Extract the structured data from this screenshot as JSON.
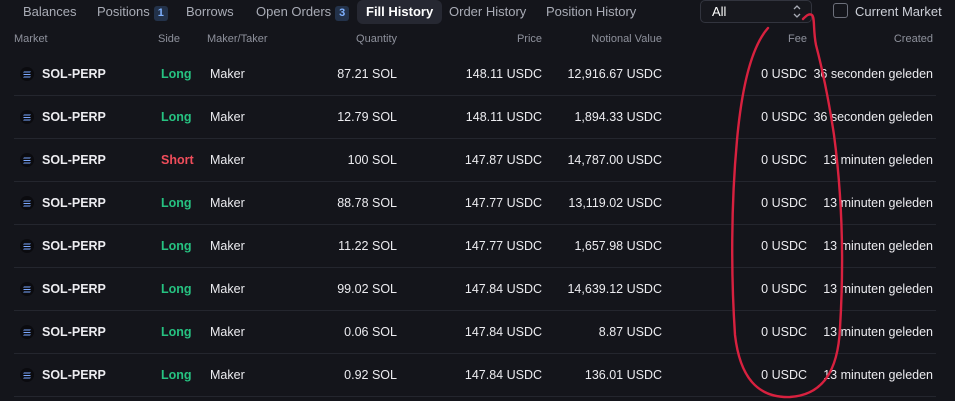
{
  "tabs": [
    {
      "label": "Balances",
      "count": null
    },
    {
      "label": "Positions",
      "count": "1"
    },
    {
      "label": "Borrows",
      "count": null
    },
    {
      "label": "Open Orders",
      "count": "3"
    },
    {
      "label": "Fill History",
      "count": null,
      "active": true
    },
    {
      "label": "Order History",
      "count": null
    },
    {
      "label": "Position History",
      "count": null
    }
  ],
  "filter": {
    "selected": "All",
    "icon": "chevron-updown-icon"
  },
  "current_market": {
    "label": "Current Market",
    "checked": false
  },
  "columns": {
    "market": "Market",
    "side": "Side",
    "maker_taker": "Maker/Taker",
    "quantity": "Quantity",
    "price": "Price",
    "notional": "Notional Value",
    "fee": "Fee",
    "created": "Created"
  },
  "rows": [
    {
      "market": "SOL-PERP",
      "side": "Long",
      "maker_taker": "Maker",
      "quantity": "87.21 SOL",
      "price": "148.11 USDC",
      "notional": "12,916.67 USDC",
      "fee": "0 USDC",
      "created": "36 seconden geleden"
    },
    {
      "market": "SOL-PERP",
      "side": "Long",
      "maker_taker": "Maker",
      "quantity": "12.79 SOL",
      "price": "148.11 USDC",
      "notional": "1,894.33 USDC",
      "fee": "0 USDC",
      "created": "36 seconden geleden"
    },
    {
      "market": "SOL-PERP",
      "side": "Short",
      "maker_taker": "Maker",
      "quantity": "100 SOL",
      "price": "147.87 USDC",
      "notional": "14,787.00 USDC",
      "fee": "0 USDC",
      "created": "13 minuten geleden"
    },
    {
      "market": "SOL-PERP",
      "side": "Long",
      "maker_taker": "Maker",
      "quantity": "88.78 SOL",
      "price": "147.77 USDC",
      "notional": "13,119.02 USDC",
      "fee": "0 USDC",
      "created": "13 minuten geleden"
    },
    {
      "market": "SOL-PERP",
      "side": "Long",
      "maker_taker": "Maker",
      "quantity": "11.22 SOL",
      "price": "147.77 USDC",
      "notional": "1,657.98 USDC",
      "fee": "0 USDC",
      "created": "13 minuten geleden"
    },
    {
      "market": "SOL-PERP",
      "side": "Long",
      "maker_taker": "Maker",
      "quantity": "99.02 SOL",
      "price": "147.84 USDC",
      "notional": "14,639.12 USDC",
      "fee": "0 USDC",
      "created": "13 minuten geleden"
    },
    {
      "market": "SOL-PERP",
      "side": "Long",
      "maker_taker": "Maker",
      "quantity": "0.06 SOL",
      "price": "147.84 USDC",
      "notional": "8.87 USDC",
      "fee": "0 USDC",
      "created": "13 minuten geleden"
    },
    {
      "market": "SOL-PERP",
      "side": "Long",
      "maker_taker": "Maker",
      "quantity": "0.92 SOL",
      "price": "147.84 USDC",
      "notional": "136.01 USDC",
      "fee": "0 USDC",
      "created": "13 minuten geleden"
    }
  ],
  "icons": {
    "market": "solana-icon"
  },
  "colors": {
    "long": "#26c281",
    "short": "#f04d5b",
    "annotation": "#d8213f",
    "background": "#14151b"
  }
}
